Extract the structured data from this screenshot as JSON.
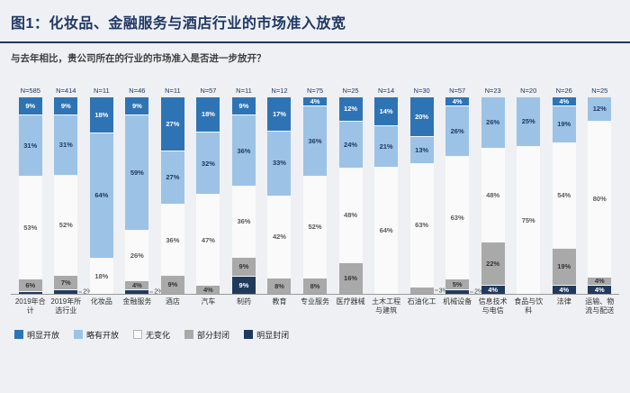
{
  "title": "图1：化妆品、金融服务与酒店行业的市场准入放宽",
  "subtitle": "与去年相比，贵公司所在的行业的市场准入是否进一步放开？",
  "label_min": 2,
  "outside_max": 3,
  "chart_data": {
    "type": "bar",
    "stacked": true,
    "orientation": "vertical",
    "unit": "%",
    "ylim": [
      0,
      100
    ],
    "grid": false,
    "legend_position": "bottom-left",
    "categories": [
      "2019年合计",
      "2019年所选行业",
      "化妆品",
      "金融服务",
      "酒店",
      "汽车",
      "制药",
      "教育",
      "专业服务",
      "医疗器械",
      "土木工程与建筑",
      "石油化工",
      "机械设备",
      "信息技术与电信",
      "食品与饮料",
      "法律",
      "运输、物流与配送"
    ],
    "n_labels": [
      "N=585",
      "N=414",
      "N=11",
      "N=46",
      "N=11",
      "N=57",
      "N=11",
      "N=12",
      "N=75",
      "N=25",
      "N=14",
      "N=30",
      "N=57",
      "N=23",
      "N=20",
      "N=26",
      "N=25"
    ],
    "series": [
      {
        "key": "open-clearly",
        "name": "明显开放",
        "color": "#2e74b5",
        "text_color": "#ffffff",
        "values": [
          9,
          9,
          18,
          9,
          27,
          18,
          9,
          17,
          4,
          12,
          14,
          20,
          4,
          0,
          0,
          4,
          0
        ]
      },
      {
        "key": "open-slightly",
        "name": "略有开放",
        "color": "#9cc3e6",
        "text_color": "#1f3864",
        "values": [
          31,
          31,
          64,
          59,
          27,
          32,
          36,
          33,
          36,
          24,
          21,
          13,
          26,
          26,
          25,
          19,
          12
        ]
      },
      {
        "key": "no-change",
        "name": "无变化",
        "color": "#fafafa",
        "text_color": "#5b5b5b",
        "swatch_border": "#b5b5b5",
        "values": [
          53,
          52,
          18,
          26,
          36,
          47,
          36,
          42,
          52,
          48,
          64,
          63,
          63,
          48,
          75,
          54,
          80
        ]
      },
      {
        "key": "closed-partly",
        "name": "部分封闭",
        "color": "#a9a9a9",
        "text_color": "#333333",
        "values": [
          6,
          7,
          0,
          4,
          9,
          4,
          9,
          8,
          8,
          16,
          0,
          3,
          5,
          22,
          0,
          19,
          4
        ]
      },
      {
        "key": "closed-clearly",
        "name": "明显封闭",
        "color": "#203a5c",
        "text_color": "#ffffff",
        "values": [
          1,
          2,
          0,
          2,
          0,
          0,
          9,
          0,
          0,
          0,
          0,
          0,
          2,
          4,
          0,
          4,
          4
        ]
      }
    ]
  }
}
